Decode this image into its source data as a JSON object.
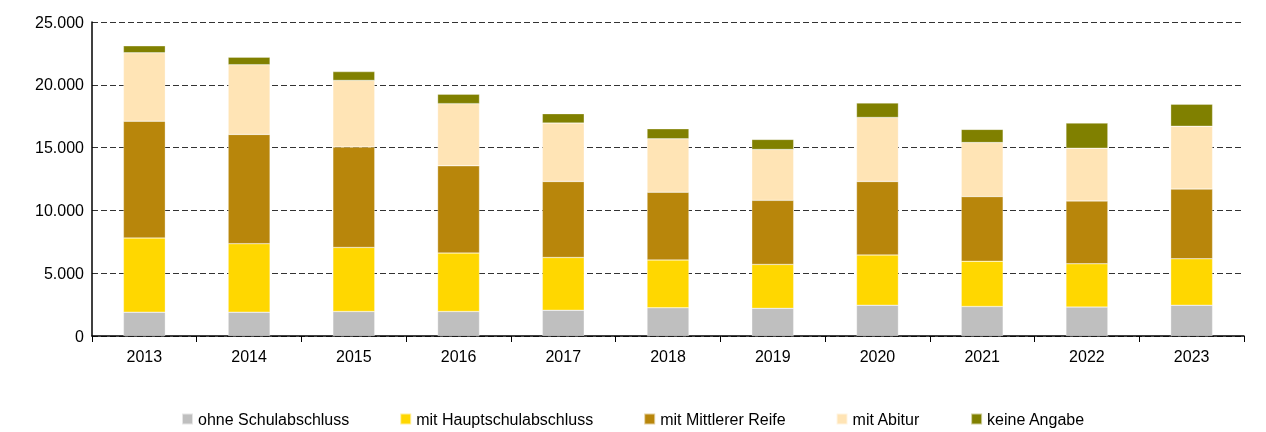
{
  "chart_data": {
    "type": "bar",
    "stacked": true,
    "categories": [
      "2013",
      "2014",
      "2015",
      "2016",
      "2017",
      "2018",
      "2019",
      "2020",
      "2021",
      "2022",
      "2023"
    ],
    "series": [
      {
        "name": "ohne Schulabschluss",
        "color": "#bfbfbf",
        "values": [
          1900,
          1900,
          1950,
          1950,
          2050,
          2250,
          2200,
          2450,
          2350,
          2300,
          2450
        ]
      },
      {
        "name": "mit Hauptschulabschluss",
        "color": "#ffd700",
        "values": [
          5900,
          5450,
          5100,
          4650,
          4200,
          3800,
          3500,
          4000,
          3600,
          3450,
          3700
        ]
      },
      {
        "name": "mit Mittlerer Reife",
        "color": "#b8860b",
        "values": [
          9300,
          8700,
          8000,
          6950,
          6050,
          5400,
          5100,
          5850,
          5150,
          5000,
          5550
        ]
      },
      {
        "name": "mit Abitur",
        "color": "#ffe4b5",
        "values": [
          5450,
          5550,
          5300,
          4950,
          4650,
          4250,
          4050,
          5100,
          4300,
          4200,
          5000
        ]
      },
      {
        "name": "keine Angabe",
        "color": "#808000",
        "values": [
          550,
          600,
          700,
          750,
          750,
          800,
          800,
          1150,
          1050,
          2000,
          1750
        ]
      }
    ],
    "ylim": [
      0,
      25000
    ],
    "yticks": [
      {
        "value": 0,
        "label": "0"
      },
      {
        "value": 5000,
        "label": "5.000"
      },
      {
        "value": 10000,
        "label": "10.000"
      },
      {
        "value": 15000,
        "label": "15.000"
      },
      {
        "value": 20000,
        "label": "20.000"
      },
      {
        "value": 25000,
        "label": "25.000"
      }
    ],
    "grid": "y",
    "legend": "bottom"
  }
}
